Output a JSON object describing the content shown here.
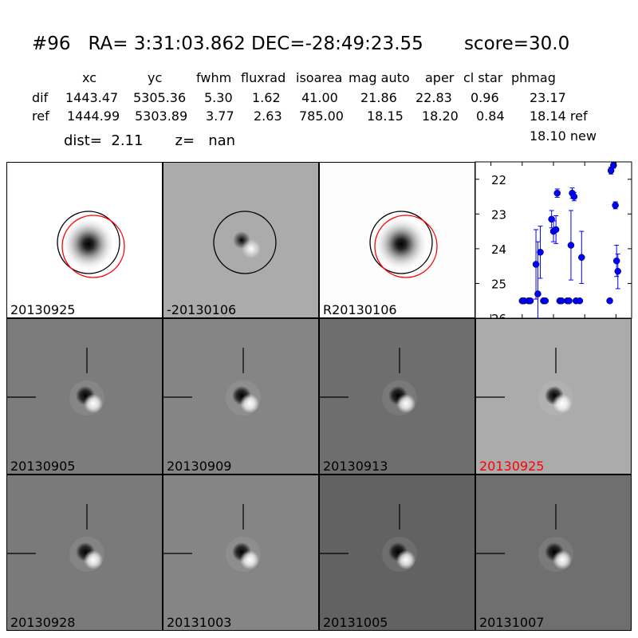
{
  "header": {
    "title": "#96   RA= 3:31:03.862 DEC=-28:49:23.55       score=30.0",
    "columns": [
      "xc",
      "yc",
      "fwhm",
      "fluxrad",
      "isoarea",
      "mag auto",
      "aper",
      "cl star",
      "phmag"
    ],
    "rows": [
      {
        "label": "dif",
        "values": [
          "1443.47",
          "5305.36",
          "5.30",
          "1.62",
          "41.00",
          "21.86",
          "22.83",
          "0.96",
          "23.17"
        ]
      },
      {
        "label": "ref",
        "values": [
          "1444.99",
          "5303.89",
          "3.77",
          "2.63",
          "785.00",
          "18.15",
          "18.20",
          "0.84",
          "18.14 ref"
        ]
      }
    ],
    "extra_phmag": "18.10 new",
    "dist_line": "dist=  2.11       z=   nan"
  },
  "stamps_top": [
    {
      "label": "20130925",
      "kind": "star",
      "bg": "#ffffff",
      "circles": [
        "black",
        "red"
      ]
    },
    {
      "label": "-20130106",
      "kind": "dipole",
      "bg": "#ababab",
      "circles": [
        "black"
      ]
    },
    {
      "label": "R20130106",
      "kind": "star",
      "bg": "#fdfdfd",
      "circles": [
        "black",
        "red"
      ]
    }
  ],
  "stamps_bottom": [
    {
      "label": "20130905",
      "bg": "#7c7c7c",
      "label_color": "#000000"
    },
    {
      "label": "20130909",
      "bg": "#858585",
      "label_color": "#000000"
    },
    {
      "label": "20130913",
      "bg": "#6e6e6e",
      "label_color": "#000000"
    },
    {
      "label": "20130925",
      "bg": "#ababab",
      "label_color": "#ff0000"
    },
    {
      "label": "20130928",
      "bg": "#7a7a7a",
      "label_color": "#000000"
    },
    {
      "label": "20131003",
      "bg": "#858585",
      "label_color": "#000000"
    },
    {
      "label": "20131005",
      "bg": "#626262",
      "label_color": "#000000"
    },
    {
      "label": "20131007",
      "bg": "#6f6f6f",
      "label_color": "#000000"
    }
  ],
  "chart_data": {
    "type": "scatter",
    "xlim": [
      -125,
      125
    ],
    "ylim": [
      26,
      21.5
    ],
    "y_inverted": true,
    "xticks": [
      -100,
      -50,
      0,
      50,
      100
    ],
    "yticks": [
      22,
      23,
      24,
      25,
      26
    ],
    "color": "#0000ff",
    "points": [
      {
        "x": -50,
        "y": 25.5,
        "err": 0
      },
      {
        "x": -47,
        "y": 25.5,
        "err": 0
      },
      {
        "x": -40,
        "y": 25.5,
        "err": 0
      },
      {
        "x": -37,
        "y": 25.5,
        "err": 0
      },
      {
        "x": -28,
        "y": 24.45,
        "err": 1.0
      },
      {
        "x": -25,
        "y": 25.3,
        "err": 1.5
      },
      {
        "x": -21,
        "y": 24.1,
        "err": 0.75
      },
      {
        "x": -16,
        "y": 25.5,
        "err": 0
      },
      {
        "x": -13,
        "y": 25.5,
        "err": 0
      },
      {
        "x": -3,
        "y": 23.15,
        "err": 0.25
      },
      {
        "x": 0,
        "y": 23.5,
        "err": 0.3
      },
      {
        "x": 4,
        "y": 23.45,
        "err": 0.4
      },
      {
        "x": 6,
        "y": 22.4,
        "err": 0.12
      },
      {
        "x": 10,
        "y": 25.5,
        "err": 0
      },
      {
        "x": 13,
        "y": 25.5,
        "err": 0
      },
      {
        "x": 22,
        "y": 25.5,
        "err": 0
      },
      {
        "x": 25,
        "y": 25.5,
        "err": 0
      },
      {
        "x": 28,
        "y": 23.9,
        "err": 1.0
      },
      {
        "x": 30,
        "y": 22.4,
        "err": 0.15
      },
      {
        "x": 33,
        "y": 22.5,
        "err": 0.12
      },
      {
        "x": 36,
        "y": 25.5,
        "err": 0
      },
      {
        "x": 42,
        "y": 25.5,
        "err": 0
      },
      {
        "x": 45,
        "y": 24.25,
        "err": 0.75
      },
      {
        "x": 90,
        "y": 25.5,
        "err": 0
      },
      {
        "x": 92,
        "y": 21.75,
        "err": 0.1
      },
      {
        "x": 96,
        "y": 21.6,
        "err": 0.08
      },
      {
        "x": 99,
        "y": 22.75,
        "err": 0.1
      },
      {
        "x": 101,
        "y": 24.35,
        "err": 0.45
      },
      {
        "x": 103,
        "y": 24.65,
        "err": 0.5
      }
    ]
  }
}
